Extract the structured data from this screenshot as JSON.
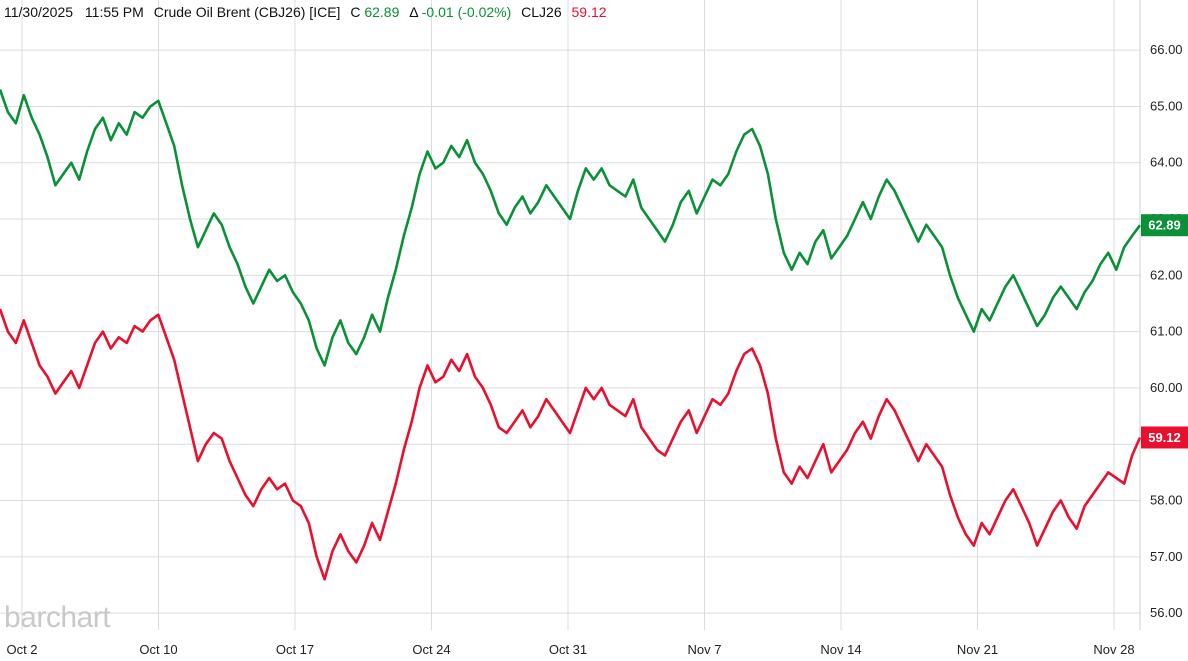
{
  "header": {
    "date": "11/30/2025",
    "time": "11:55 PM",
    "name": "Crude Oil Brent (CBJ26) [ICE]",
    "c_prefix": "C",
    "close": "62.89",
    "delta_prefix": "Δ",
    "change": "-0.01 (-0.02%)",
    "compare_symbol": "CLJ26",
    "compare_value": "59.12"
  },
  "watermark": "barchart",
  "colors": {
    "primary": "#0a9038",
    "compare": "#e8102e",
    "grid": "#dcdcdc"
  },
  "badges": {
    "primary": "62.89",
    "compare": "59.12"
  },
  "chart_data": {
    "type": "line",
    "x_labels": [
      "Oct 2",
      "Oct 10",
      "Oct 17",
      "Oct 24",
      "Oct 31",
      "Nov 7",
      "Nov 14",
      "Nov 21",
      "Nov 28"
    ],
    "y_ticks": [
      "66.00",
      "65.00",
      "64.00",
      "63.00",
      "62.00",
      "61.00",
      "60.00",
      "59.00",
      "58.00",
      "57.00",
      "56.00"
    ],
    "ylim": [
      55.7,
      66.5
    ],
    "y_axis_position": "right",
    "grid": true,
    "series": [
      {
        "name": "Crude Oil Brent (CBJ26)",
        "color": "#0a9038",
        "values": [
          65.3,
          64.9,
          64.7,
          65.2,
          64.8,
          64.5,
          64.1,
          63.6,
          63.8,
          64.0,
          63.7,
          64.2,
          64.6,
          64.8,
          64.4,
          64.7,
          64.5,
          64.9,
          64.8,
          65.0,
          65.1,
          64.7,
          64.3,
          63.6,
          63.0,
          62.5,
          62.8,
          63.1,
          62.9,
          62.5,
          62.2,
          61.8,
          61.5,
          61.8,
          62.1,
          61.9,
          62.0,
          61.7,
          61.5,
          61.2,
          60.7,
          60.4,
          60.9,
          61.2,
          60.8,
          60.6,
          60.9,
          61.3,
          61.0,
          61.6,
          62.1,
          62.7,
          63.2,
          63.8,
          64.2,
          63.9,
          64.0,
          64.3,
          64.1,
          64.4,
          64.0,
          63.8,
          63.5,
          63.1,
          62.9,
          63.2,
          63.4,
          63.1,
          63.3,
          63.6,
          63.4,
          63.2,
          63.0,
          63.5,
          63.9,
          63.7,
          63.9,
          63.6,
          63.5,
          63.4,
          63.7,
          63.2,
          63.0,
          62.8,
          62.6,
          62.9,
          63.3,
          63.5,
          63.1,
          63.4,
          63.7,
          63.6,
          63.8,
          64.2,
          64.5,
          64.6,
          64.3,
          63.8,
          63.0,
          62.4,
          62.1,
          62.4,
          62.2,
          62.6,
          62.8,
          62.3,
          62.5,
          62.7,
          63.0,
          63.3,
          63.0,
          63.4,
          63.7,
          63.5,
          63.2,
          62.9,
          62.6,
          62.9,
          62.7,
          62.5,
          62.0,
          61.6,
          61.3,
          61.0,
          61.4,
          61.2,
          61.5,
          61.8,
          62.0,
          61.7,
          61.4,
          61.1,
          61.3,
          61.6,
          61.8,
          61.6,
          61.4,
          61.7,
          61.9,
          62.2,
          62.4,
          62.1,
          62.5,
          62.7,
          62.89
        ]
      },
      {
        "name": "CLJ26",
        "color": "#e8102e",
        "values": [
          61.4,
          61.0,
          60.8,
          61.2,
          60.8,
          60.4,
          60.2,
          59.9,
          60.1,
          60.3,
          60.0,
          60.4,
          60.8,
          61.0,
          60.7,
          60.9,
          60.8,
          61.1,
          61.0,
          61.2,
          61.3,
          60.9,
          60.5,
          59.9,
          59.3,
          58.7,
          59.0,
          59.2,
          59.1,
          58.7,
          58.4,
          58.1,
          57.9,
          58.2,
          58.4,
          58.2,
          58.3,
          58.0,
          57.9,
          57.6,
          57.0,
          56.6,
          57.1,
          57.4,
          57.1,
          56.9,
          57.2,
          57.6,
          57.3,
          57.8,
          58.3,
          58.9,
          59.4,
          60.0,
          60.4,
          60.1,
          60.2,
          60.5,
          60.3,
          60.6,
          60.2,
          60.0,
          59.7,
          59.3,
          59.2,
          59.4,
          59.6,
          59.3,
          59.5,
          59.8,
          59.6,
          59.4,
          59.2,
          59.6,
          60.0,
          59.8,
          60.0,
          59.7,
          59.6,
          59.5,
          59.8,
          59.3,
          59.1,
          58.9,
          58.8,
          59.1,
          59.4,
          59.6,
          59.2,
          59.5,
          59.8,
          59.7,
          59.9,
          60.3,
          60.6,
          60.7,
          60.4,
          59.9,
          59.1,
          58.5,
          58.3,
          58.6,
          58.4,
          58.7,
          59.0,
          58.5,
          58.7,
          58.9,
          59.2,
          59.4,
          59.1,
          59.5,
          59.8,
          59.6,
          59.3,
          59.0,
          58.7,
          59.0,
          58.8,
          58.6,
          58.1,
          57.7,
          57.4,
          57.2,
          57.6,
          57.4,
          57.7,
          58.0,
          58.2,
          57.9,
          57.6,
          57.2,
          57.5,
          57.8,
          58.0,
          57.7,
          57.5,
          57.9,
          58.1,
          58.3,
          58.5,
          58.4,
          58.3,
          58.8,
          59.12
        ]
      }
    ]
  }
}
